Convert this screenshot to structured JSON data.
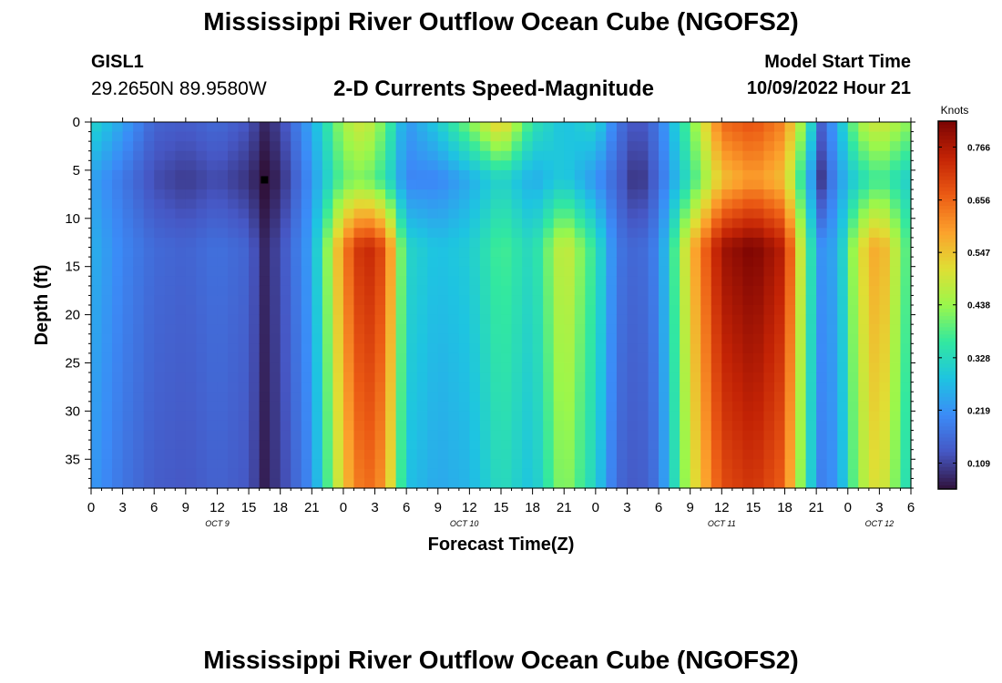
{
  "header": {
    "title": "Mississippi River Outflow Ocean Cube (NGOFS2)",
    "station_id": "GISL1",
    "coordinates": "29.2650N  89.9580W",
    "subtitle": "2-D Currents Speed-Magnitude",
    "model_start_label": "Model Start Time",
    "model_start_value": "10/09/2022 Hour 21"
  },
  "footer": {
    "title": "Mississippi River Outflow Ocean Cube (NGOFS2)"
  },
  "chart_data": {
    "type": "heatmap",
    "title": "2-D Currents Speed-Magnitude",
    "xlabel": "Forecast Time(Z)",
    "ylabel": "Depth (ft)",
    "x_range_hours": [
      0,
      78
    ],
    "y_range_ft": [
      0,
      38
    ],
    "y_inverted": true,
    "x_ticks": [
      {
        "h": 0,
        "label": "0"
      },
      {
        "h": 3,
        "label": "3"
      },
      {
        "h": 6,
        "label": "6"
      },
      {
        "h": 9,
        "label": "9"
      },
      {
        "h": 12,
        "label": "12"
      },
      {
        "h": 15,
        "label": "15"
      },
      {
        "h": 18,
        "label": "18"
      },
      {
        "h": 21,
        "label": "21"
      },
      {
        "h": 24,
        "label": "0"
      },
      {
        "h": 27,
        "label": "3"
      },
      {
        "h": 30,
        "label": "6"
      },
      {
        "h": 33,
        "label": "9"
      },
      {
        "h": 36,
        "label": "12"
      },
      {
        "h": 39,
        "label": "15"
      },
      {
        "h": 42,
        "label": "18"
      },
      {
        "h": 45,
        "label": "21"
      },
      {
        "h": 48,
        "label": "0"
      },
      {
        "h": 51,
        "label": "3"
      },
      {
        "h": 54,
        "label": "6"
      },
      {
        "h": 57,
        "label": "9"
      },
      {
        "h": 60,
        "label": "12"
      },
      {
        "h": 63,
        "label": "15"
      },
      {
        "h": 66,
        "label": "18"
      },
      {
        "h": 69,
        "label": "21"
      },
      {
        "h": 72,
        "label": "0"
      },
      {
        "h": 75,
        "label": "3"
      },
      {
        "h": 78,
        "label": "6"
      }
    ],
    "date_labels": [
      {
        "h": 12,
        "label": "OCT 9"
      },
      {
        "h": 35.5,
        "label": "OCT 10"
      },
      {
        "h": 60,
        "label": "OCT 11"
      },
      {
        "h": 75,
        "label": "OCT 12"
      }
    ],
    "y_ticks": [
      0,
      5,
      10,
      15,
      20,
      25,
      30,
      35
    ],
    "colorbar": {
      "unit": "Knots",
      "min": 0.055,
      "max": 0.82,
      "tick_values": [
        0.766,
        0.656,
        0.547,
        0.438,
        0.328,
        0.219,
        0.109
      ],
      "tick_labels": [
        "0.766",
        "0.656",
        "0.547",
        "0.438",
        "0.328",
        "0.219",
        "0.109"
      ]
    },
    "marker": {
      "hour": 16.5,
      "depth_ft": 6
    },
    "speed_profile_knots": [
      {
        "h": 0,
        "surface": 0.32,
        "upper": 0.24,
        "deep": 0.26
      },
      {
        "h": 3,
        "surface": 0.24,
        "upper": 0.18,
        "deep": 0.2
      },
      {
        "h": 6,
        "surface": 0.15,
        "upper": 0.12,
        "deep": 0.16
      },
      {
        "h": 9,
        "surface": 0.14,
        "upper": 0.1,
        "deep": 0.15
      },
      {
        "h": 12,
        "surface": 0.16,
        "upper": 0.12,
        "deep": 0.17
      },
      {
        "h": 15,
        "surface": 0.13,
        "upper": 0.09,
        "deep": 0.15
      },
      {
        "h": 16.5,
        "surface": 0.08,
        "upper": 0.05,
        "deep": 0.08
      },
      {
        "h": 18,
        "surface": 0.11,
        "upper": 0.08,
        "deep": 0.12
      },
      {
        "h": 21,
        "surface": 0.25,
        "upper": 0.22,
        "deep": 0.24
      },
      {
        "h": 24,
        "surface": 0.45,
        "upper": 0.4,
        "deep": 0.62
      },
      {
        "h": 26,
        "surface": 0.5,
        "upper": 0.42,
        "deep": 0.75
      },
      {
        "h": 28,
        "surface": 0.4,
        "upper": 0.35,
        "deep": 0.68
      },
      {
        "h": 30,
        "surface": 0.22,
        "upper": 0.2,
        "deep": 0.32
      },
      {
        "h": 33,
        "surface": 0.3,
        "upper": 0.2,
        "deep": 0.28
      },
      {
        "h": 36,
        "surface": 0.42,
        "upper": 0.25,
        "deep": 0.3
      },
      {
        "h": 39,
        "surface": 0.55,
        "upper": 0.32,
        "deep": 0.38
      },
      {
        "h": 42,
        "surface": 0.35,
        "upper": 0.25,
        "deep": 0.32
      },
      {
        "h": 45,
        "surface": 0.28,
        "upper": 0.3,
        "deep": 0.5
      },
      {
        "h": 48,
        "surface": 0.32,
        "upper": 0.22,
        "deep": 0.35
      },
      {
        "h": 50,
        "surface": 0.18,
        "upper": 0.15,
        "deep": 0.18
      },
      {
        "h": 52,
        "surface": 0.12,
        "upper": 0.08,
        "deep": 0.15
      },
      {
        "h": 54,
        "surface": 0.18,
        "upper": 0.16,
        "deep": 0.2
      },
      {
        "h": 57,
        "surface": 0.4,
        "upper": 0.35,
        "deep": 0.55
      },
      {
        "h": 60,
        "surface": 0.65,
        "upper": 0.55,
        "deep": 0.78
      },
      {
        "h": 63,
        "surface": 0.68,
        "upper": 0.6,
        "deep": 0.82
      },
      {
        "h": 66,
        "surface": 0.62,
        "upper": 0.55,
        "deep": 0.75
      },
      {
        "h": 68,
        "surface": 0.4,
        "upper": 0.3,
        "deep": 0.4
      },
      {
        "h": 69.5,
        "surface": 0.15,
        "upper": 0.1,
        "deep": 0.22
      },
      {
        "h": 71,
        "surface": 0.25,
        "upper": 0.22,
        "deep": 0.25
      },
      {
        "h": 73,
        "surface": 0.45,
        "upper": 0.32,
        "deep": 0.5
      },
      {
        "h": 75,
        "surface": 0.5,
        "upper": 0.38,
        "deep": 0.6
      },
      {
        "h": 78,
        "surface": 0.42,
        "upper": 0.3,
        "deep": 0.35
      }
    ]
  }
}
